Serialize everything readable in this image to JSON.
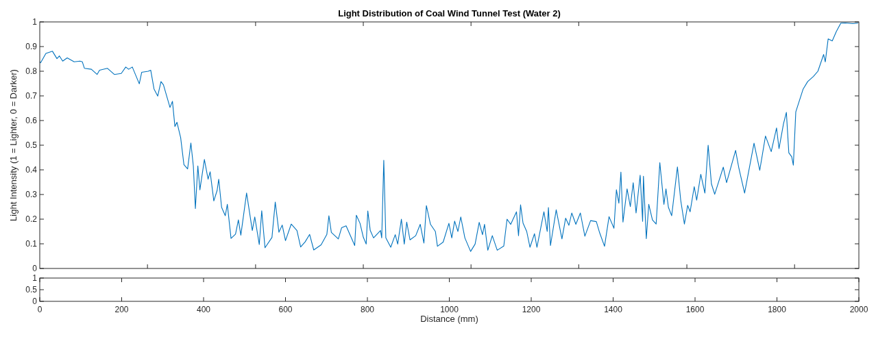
{
  "chart_data": [
    {
      "type": "line",
      "title": "Light Distribution of Coal Wind Tunnel Test (Water 2)",
      "ylabel": "Light Intensity (1 = Lighter, 0 = Darker)",
      "xlim": [
        0,
        2000
      ],
      "xticks": [
        {
          "value": 263,
          "label": null
        },
        {
          "value": 527,
          "label": null
        },
        {
          "value": 790,
          "label": null
        },
        {
          "value": 1053,
          "label": null
        },
        {
          "value": 1316,
          "label": null
        },
        {
          "value": 1580,
          "label": null
        },
        {
          "value": 1843,
          "label": null
        }
      ],
      "ylim": [
        0,
        1
      ],
      "yticks": [
        0,
        0.1,
        0.2,
        0.3,
        0.4,
        0.5,
        0.6,
        0.7,
        0.8,
        0.9,
        1
      ],
      "tick_labels": "y",
      "grid": false,
      "series": [
        {
          "color": "#0072bd",
          "x": [
            0,
            2,
            15,
            31,
            42,
            48,
            56,
            67,
            84,
            98,
            104,
            109,
            126,
            140,
            146,
            165,
            182,
            199,
            210,
            217,
            226,
            243,
            249,
            265,
            271,
            279,
            288,
            296,
            302,
            318,
            324,
            330,
            335,
            344,
            352,
            361,
            369,
            375,
            380,
            386,
            391,
            402,
            411,
            416,
            425,
            433,
            437,
            444,
            453,
            458,
            467,
            478,
            485,
            491,
            505,
            519,
            525,
            536,
            542,
            550,
            567,
            575,
            584,
            592,
            600,
            614,
            628,
            637,
            648,
            659,
            669,
            687,
            701,
            706,
            712,
            729,
            737,
            748,
            759,
            769,
            773,
            782,
            790,
            797,
            801,
            807,
            815,
            832,
            835,
            840,
            845,
            857,
            868,
            874,
            883,
            890,
            896,
            904,
            918,
            929,
            938,
            944,
            954,
            966,
            971,
            985,
            999,
            1006,
            1013,
            1021,
            1028,
            1038,
            1052,
            1063,
            1073,
            1081,
            1086,
            1094,
            1105,
            1117,
            1133,
            1141,
            1150,
            1164,
            1169,
            1174,
            1180,
            1189,
            1197,
            1208,
            1214,
            1231,
            1239,
            1242,
            1247,
            1261,
            1275,
            1284,
            1292,
            1299,
            1309,
            1320,
            1331,
            1345,
            1359,
            1367,
            1379,
            1390,
            1402,
            1408,
            1414,
            1419,
            1424,
            1434,
            1442,
            1449,
            1456,
            1466,
            1472,
            1474,
            1481,
            1487,
            1496,
            1505,
            1514,
            1524,
            1529,
            1535,
            1543,
            1557,
            1565,
            1574,
            1582,
            1588,
            1598,
            1604,
            1614,
            1624,
            1632,
            1640,
            1648,
            1669,
            1677,
            1699,
            1707,
            1721,
            1744,
            1758,
            1772,
            1786,
            1799,
            1805,
            1816,
            1823,
            1829,
            1836,
            1840,
            1846,
            1850,
            1864,
            1875,
            1889,
            1900,
            1914,
            1918,
            1925,
            1935,
            1945,
            1956,
            1967,
            1985,
            1998
          ],
          "values": [
            0.838,
            0.834,
            0.872,
            0.881,
            0.851,
            0.862,
            0.841,
            0.854,
            0.838,
            0.841,
            0.838,
            0.812,
            0.808,
            0.787,
            0.804,
            0.812,
            0.787,
            0.791,
            0.817,
            0.808,
            0.817,
            0.749,
            0.796,
            0.8,
            0.804,
            0.728,
            0.699,
            0.758,
            0.745,
            0.653,
            0.678,
            0.576,
            0.593,
            0.531,
            0.421,
            0.404,
            0.509,
            0.416,
            0.243,
            0.416,
            0.319,
            0.442,
            0.362,
            0.392,
            0.274,
            0.316,
            0.362,
            0.248,
            0.214,
            0.26,
            0.122,
            0.139,
            0.197,
            0.135,
            0.306,
            0.154,
            0.209,
            0.097,
            0.234,
            0.084,
            0.126,
            0.269,
            0.147,
            0.176,
            0.113,
            0.18,
            0.154,
            0.087,
            0.108,
            0.138,
            0.075,
            0.096,
            0.138,
            0.214,
            0.146,
            0.12,
            0.165,
            0.173,
            0.131,
            0.093,
            0.216,
            0.183,
            0.127,
            0.099,
            0.233,
            0.154,
            0.124,
            0.154,
            0.124,
            0.439,
            0.124,
            0.086,
            0.137,
            0.099,
            0.2,
            0.099,
            0.188,
            0.116,
            0.133,
            0.179,
            0.103,
            0.255,
            0.179,
            0.15,
            0.09,
            0.107,
            0.183,
            0.124,
            0.192,
            0.15,
            0.209,
            0.124,
            0.069,
            0.099,
            0.187,
            0.137,
            0.179,
            0.074,
            0.133,
            0.074,
            0.091,
            0.2,
            0.179,
            0.23,
            0.133,
            0.258,
            0.184,
            0.15,
            0.086,
            0.141,
            0.086,
            0.23,
            0.15,
            0.247,
            0.093,
            0.238,
            0.12,
            0.204,
            0.175,
            0.225,
            0.179,
            0.225,
            0.131,
            0.194,
            0.19,
            0.145,
            0.09,
            0.21,
            0.163,
            0.319,
            0.265,
            0.391,
            0.188,
            0.323,
            0.251,
            0.348,
            0.225,
            0.378,
            0.191,
            0.374,
            0.121,
            0.26,
            0.197,
            0.18,
            0.429,
            0.26,
            0.323,
            0.248,
            0.214,
            0.412,
            0.277,
            0.18,
            0.256,
            0.23,
            0.332,
            0.277,
            0.382,
            0.306,
            0.5,
            0.343,
            0.301,
            0.411,
            0.348,
            0.479,
            0.407,
            0.306,
            0.508,
            0.398,
            0.537,
            0.474,
            0.57,
            0.486,
            0.587,
            0.633,
            0.469,
            0.453,
            0.419,
            0.635,
            0.656,
            0.728,
            0.758,
            0.779,
            0.8,
            0.868,
            0.838,
            0.931,
            0.923,
            0.961,
            0.995,
            0.996,
            0.993,
            0.995
          ]
        }
      ]
    },
    {
      "type": "line",
      "xlabel": "Distance (mm)",
      "xlim": [
        0,
        2000
      ],
      "xticks": [
        0,
        200,
        400,
        600,
        800,
        1000,
        1200,
        1400,
        1600,
        1800,
        2000
      ],
      "ylim": [
        0,
        1
      ],
      "yticks": [
        0,
        0.5,
        1
      ]
    }
  ]
}
